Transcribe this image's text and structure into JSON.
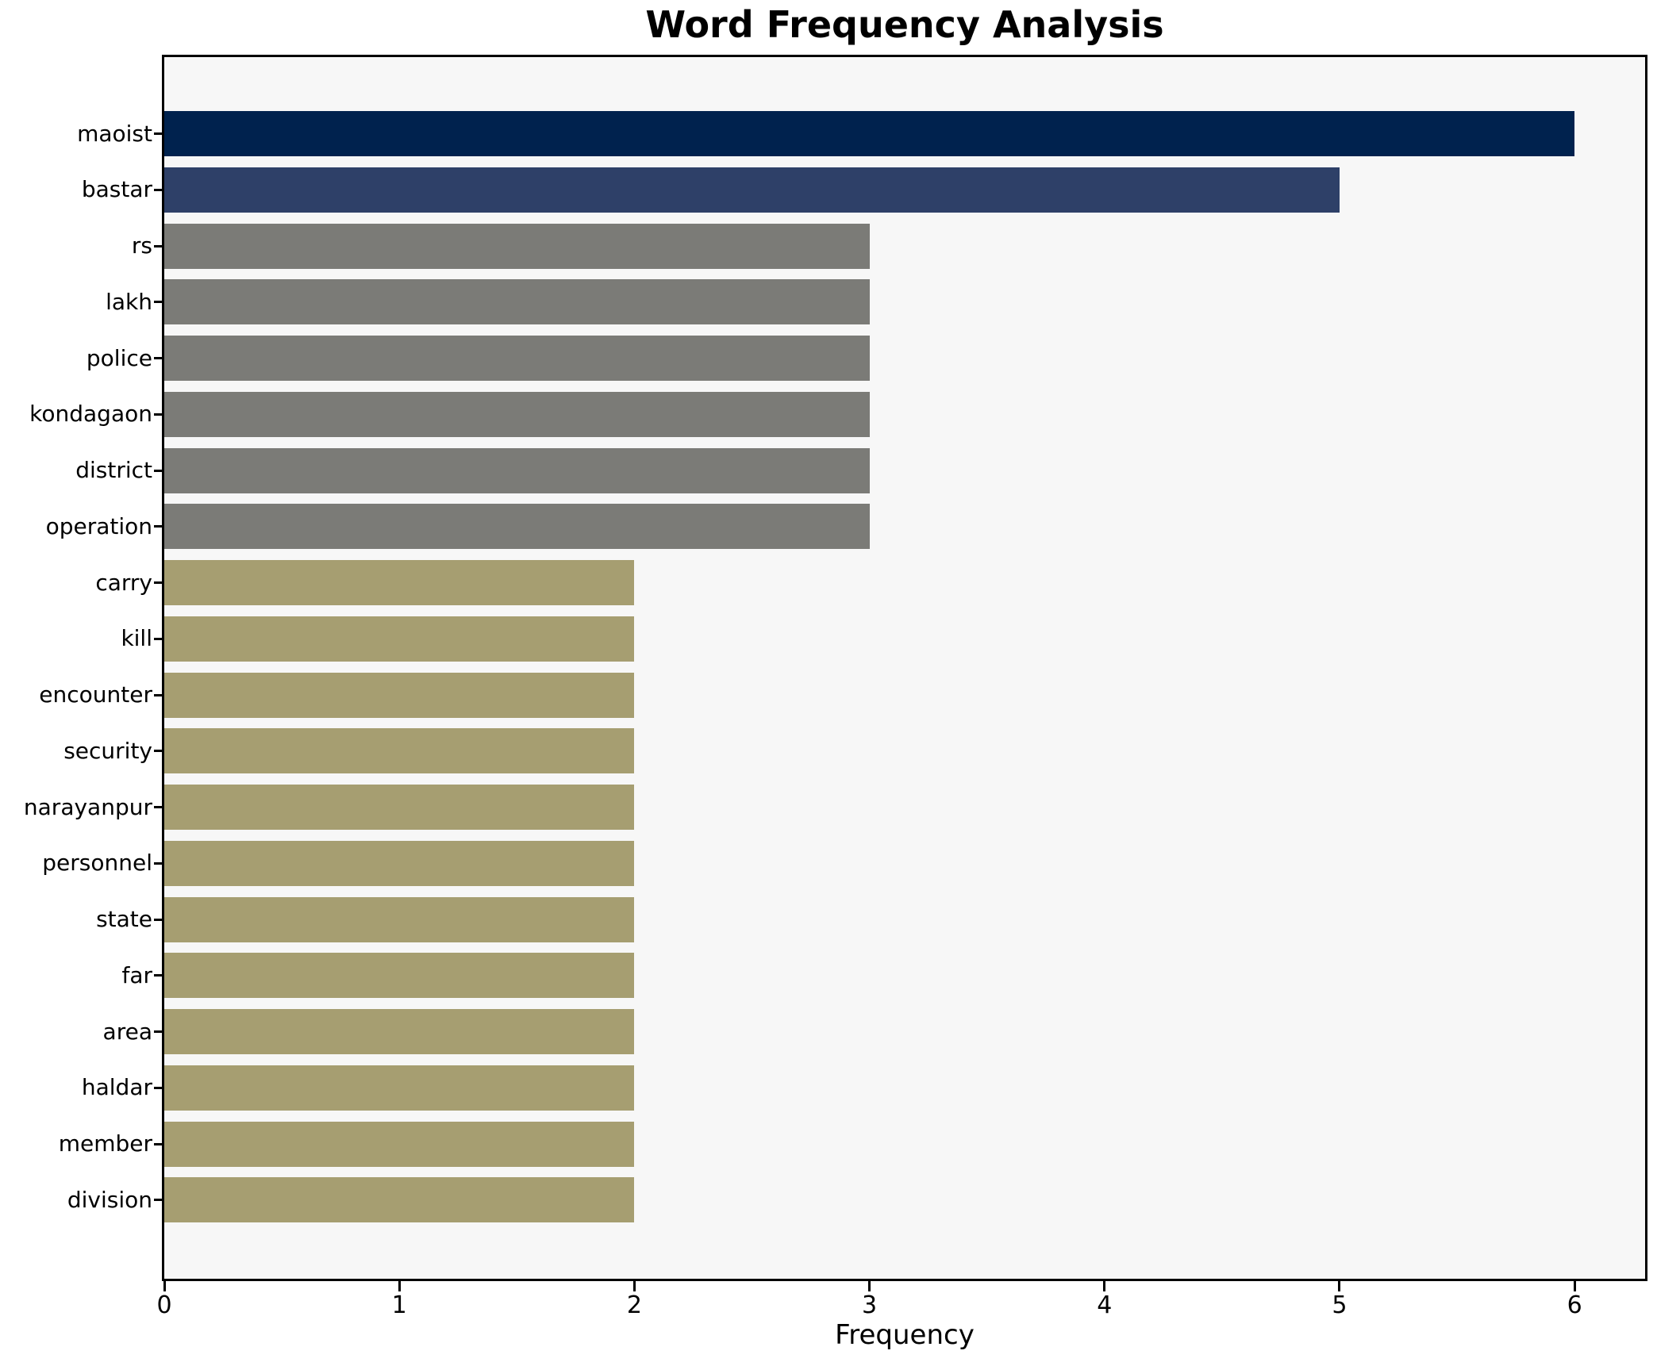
{
  "chart_data": {
    "type": "bar",
    "orientation": "horizontal",
    "title": "Word Frequency Analysis",
    "xlabel": "Frequency",
    "ylabel": "",
    "categories": [
      "maoist",
      "bastar",
      "rs",
      "lakh",
      "police",
      "kondagaon",
      "district",
      "operation",
      "carry",
      "kill",
      "encounter",
      "security",
      "narayanpur",
      "personnel",
      "state",
      "far",
      "area",
      "haldar",
      "member",
      "division"
    ],
    "values": [
      6,
      5,
      3,
      3,
      3,
      3,
      3,
      3,
      2,
      2,
      2,
      2,
      2,
      2,
      2,
      2,
      2,
      2,
      2,
      2
    ],
    "bar_colors": [
      "#00224e",
      "#2e4068",
      "#7b7b77",
      "#7b7b77",
      "#7b7b77",
      "#7b7b77",
      "#7b7b77",
      "#7b7b77",
      "#a69e71",
      "#a69e71",
      "#a69e71",
      "#a69e71",
      "#a69e71",
      "#a69e71",
      "#a69e71",
      "#a69e71",
      "#a69e71",
      "#a69e71",
      "#a69e71",
      "#a69e71"
    ],
    "xticks": [
      0,
      1,
      2,
      3,
      4,
      5,
      6
    ],
    "xlim": [
      0,
      6.3
    ],
    "grid": false,
    "legend": null,
    "plot_background": "#f7f7f7",
    "figure_background": "#ffffff",
    "spine_color": "#000000",
    "text_color": "#000000"
  }
}
